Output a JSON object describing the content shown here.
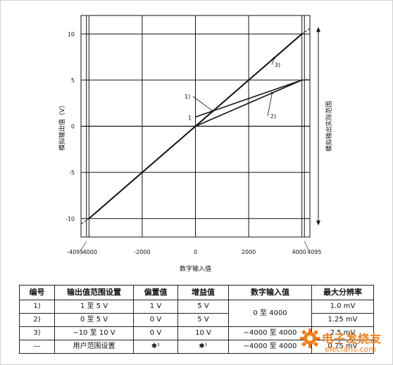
{
  "chart_data": {
    "type": "line",
    "xlabel": "数字输入值",
    "ylabel": "模拟输出值（V）",
    "right_label": "模拟输出实际范围",
    "xlim": [
      -4300,
      4300
    ],
    "ylim": [
      -12,
      12
    ],
    "x_ticks": [
      "-4000",
      "-2000",
      "0",
      "2000",
      "4000"
    ],
    "x_tick_values": [
      -4000,
      -2000,
      0,
      2000,
      4000
    ],
    "x_extra_ticks": [
      "-4095",
      "4095"
    ],
    "x_extra_values": [
      -4095,
      4095
    ],
    "y_ticks": [
      "10",
      "5",
      "0",
      "-5",
      "-10"
    ],
    "y_tick_values": [
      10,
      5,
      0,
      -5,
      -10
    ],
    "grid": true,
    "series": [
      {
        "name": "1)",
        "x": [
          0,
          4000
        ],
        "y": [
          1,
          5
        ]
      },
      {
        "name": "2)",
        "x": [
          0,
          4000
        ],
        "y": [
          0,
          5
        ]
      },
      {
        "name": "3)",
        "x": [
          -4000,
          4000
        ],
        "y": [
          -10,
          10
        ]
      }
    ],
    "point_label": "1"
  },
  "table": {
    "headers": [
      "编号",
      "输出值范围设置",
      "偏置值",
      "增益值",
      "数字输入值",
      "最大分辨率"
    ],
    "rows": [
      [
        "1)",
        "1 至 5 V",
        "1 V",
        "5 V",
        "0 至 4000",
        "1.0 mV"
      ],
      [
        "2)",
        "0 至 5 V",
        "0 V",
        "5 V",
        "",
        "1.25 mV"
      ],
      [
        "3)",
        "−10 至 10 V",
        "0 V",
        "10 V",
        "−4000 至 4000",
        "2.5 mV"
      ],
      [
        "—",
        "用户范围设置",
        "✱¹",
        "✱¹",
        "−4000 至 4000",
        "0.75 mV"
      ]
    ]
  },
  "watermark": {
    "text": "电子发烧友",
    "url": "elecfans.com"
  }
}
